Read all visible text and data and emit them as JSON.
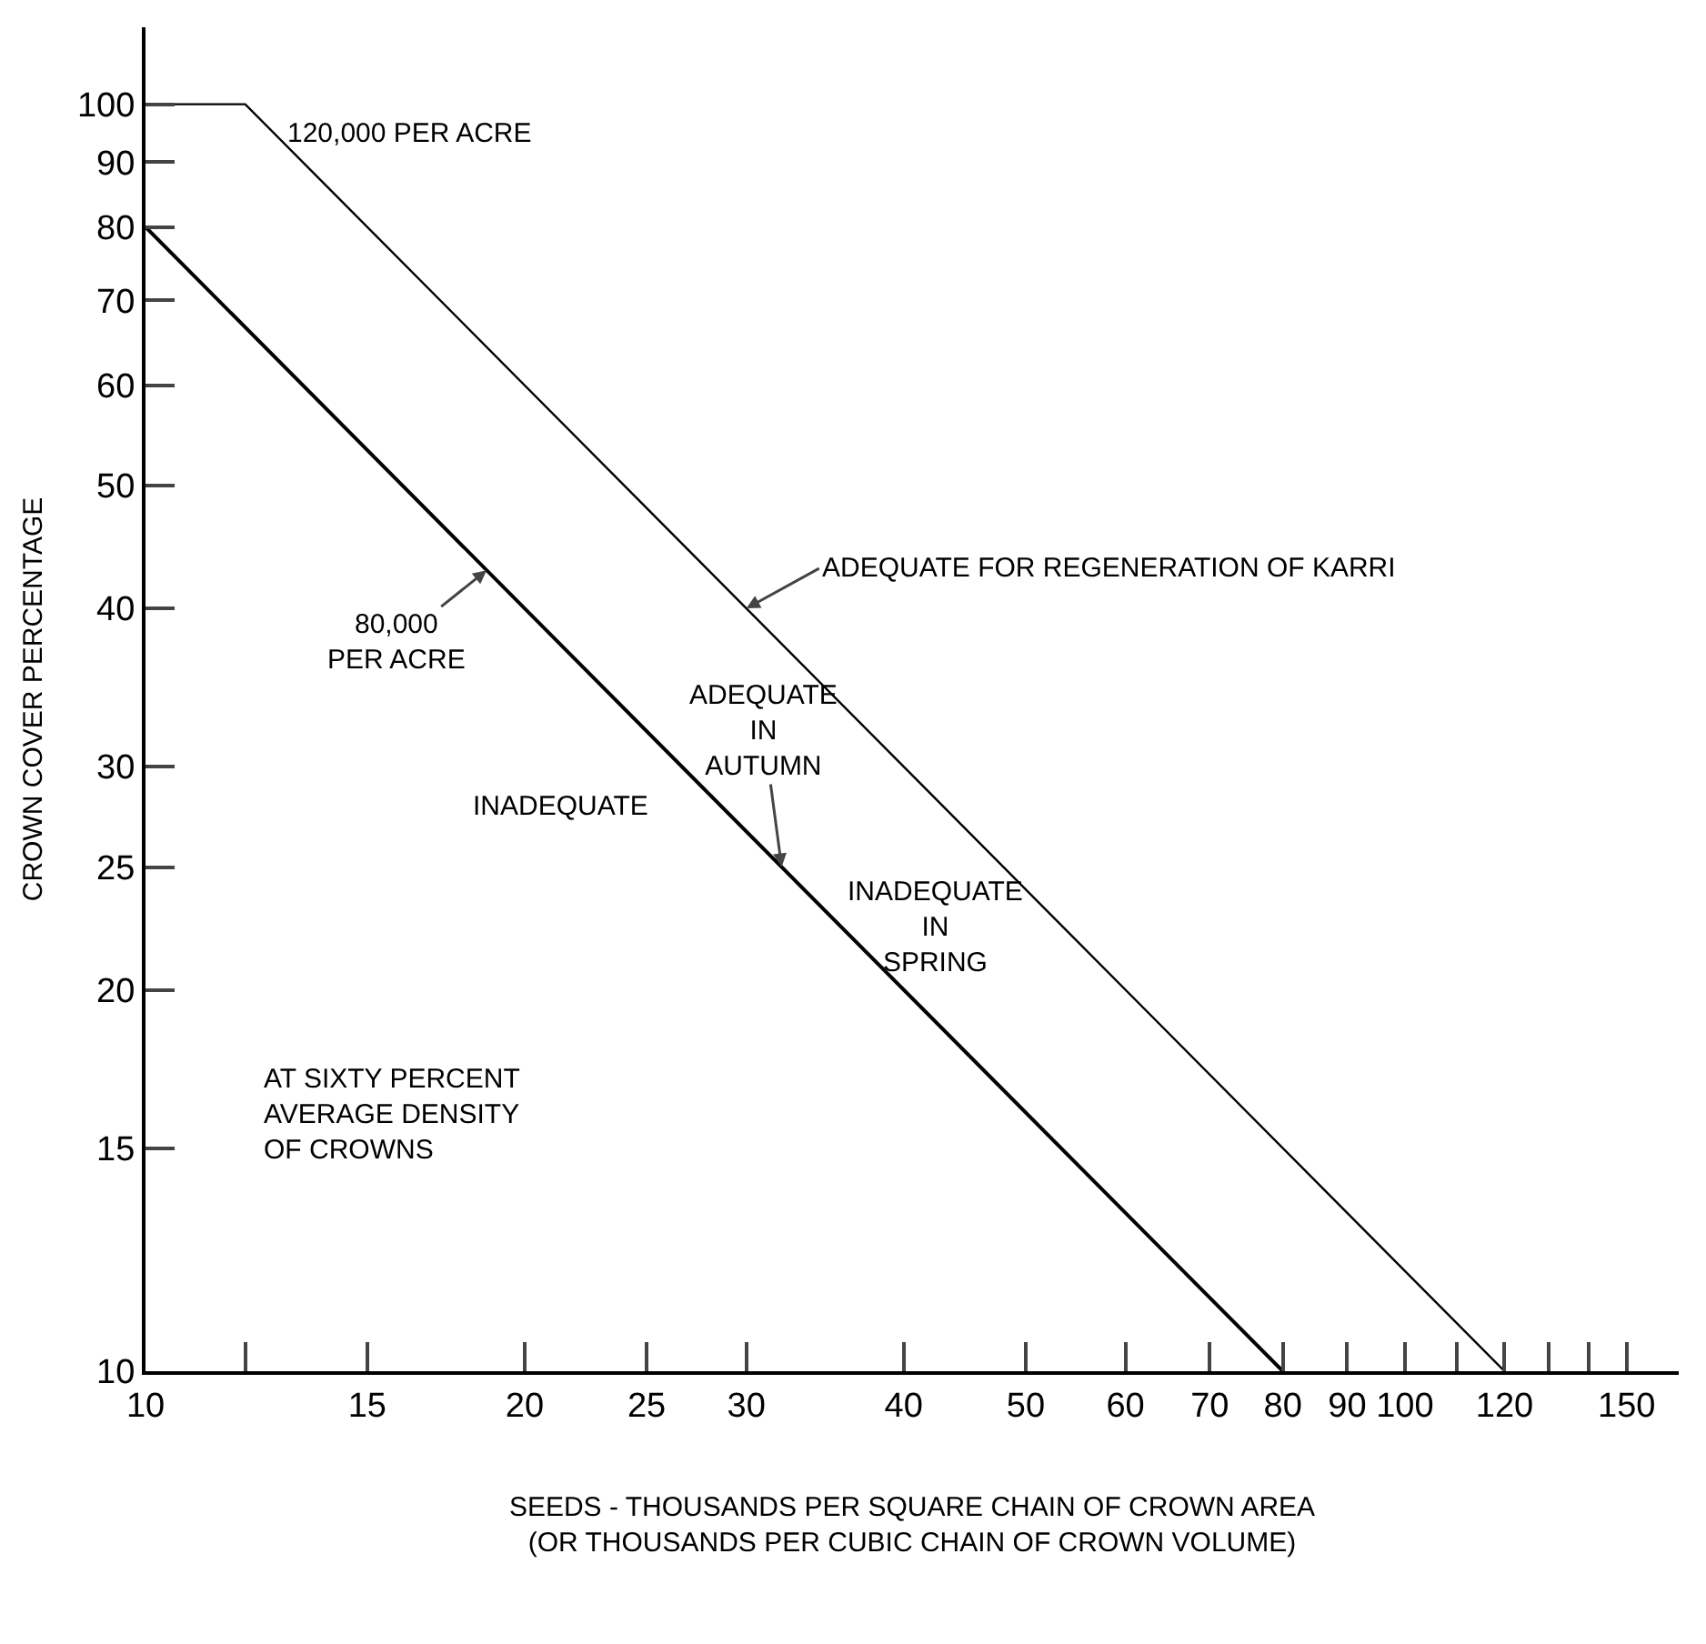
{
  "chart_data": {
    "type": "line",
    "xlabel": "SEEDS - THOUSANDS PER SQUARE CHAIN OF CROWN AREA\n(OR THOUSANDS PER CUBIC CHAIN OF CROWN VOLUME)",
    "ylabel": "CROWN COVER PERCENTAGE",
    "log": "xy",
    "xlim": [
      10,
      165
    ],
    "ylim": [
      10,
      115
    ],
    "xticks": [
      10,
      {
        "value": 12,
        "label": null
      },
      15,
      20,
      25,
      30,
      40,
      50,
      60,
      70,
      80,
      90,
      100,
      {
        "value": 110,
        "label": null
      },
      120,
      {
        "value": 130,
        "label": null
      },
      {
        "value": 140,
        "label": null
      },
      150
    ],
    "yticks": [
      10,
      15,
      20,
      25,
      30,
      40,
      50,
      60,
      70,
      80,
      90,
      100
    ],
    "grid": false,
    "marker": "none",
    "line_style": "solid",
    "series": [
      {
        "name": "120,000 PER ACRE",
        "color": "#000000",
        "x": [
          10,
          12,
          120
        ],
        "values": [
          100,
          100,
          10
        ]
      },
      {
        "name": "80,000\nPER ACRE",
        "color": "#000000",
        "x": [
          10,
          80
        ],
        "values": [
          80,
          10
        ]
      }
    ],
    "annotations": [
      {
        "text": "ADEQUATE FOR REGENERATION OF KARRI",
        "x": 30,
        "y": 40
      },
      {
        "text": "ADEQUATE\nIN\nAUTUMN",
        "x": 32,
        "y": 25
      },
      "INADEQUATE",
      "INADEQUATE\nIN\nSPRING",
      "AT SIXTY PERCENT\nAVERAGE DENSITY\nOF CROWNS"
    ]
  }
}
